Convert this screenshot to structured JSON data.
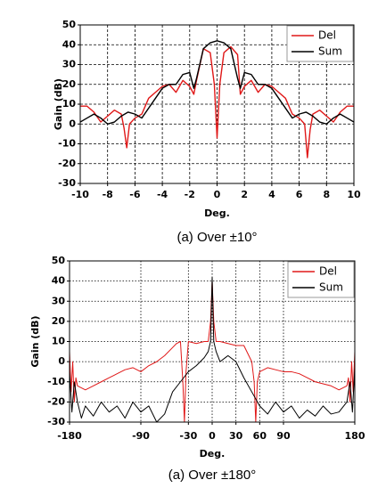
{
  "chart_data": [
    {
      "type": "line",
      "xlabel": "Deg.",
      "ylabel": "Gain (dB)",
      "caption": "(a) Over ±10°",
      "xlim": [
        -10,
        10
      ],
      "ylim": [
        -30,
        50
      ],
      "xticks": [
        -10,
        -8,
        -6,
        -4,
        -2,
        0,
        2,
        4,
        6,
        8,
        10
      ],
      "yticks": [
        -30,
        -20,
        -10,
        0,
        10,
        20,
        30,
        40,
        50
      ],
      "grid": true,
      "legend": "upper right",
      "series": [
        {
          "name": "Del",
          "color": "#e01818",
          "x": [
            -10,
            -9.5,
            -9,
            -8.5,
            -8,
            -7.5,
            -7,
            -6.8,
            -6.6,
            -6.4,
            -6,
            -5.5,
            -5,
            -4.5,
            -4,
            -3.5,
            -3,
            -2.5,
            -2,
            -1.7,
            -1.5,
            -1,
            -0.5,
            -0.2,
            0,
            0.2,
            0.5,
            1,
            1.5,
            1.7,
            2,
            2.5,
            3,
            3.5,
            4,
            4.5,
            5,
            5.5,
            6,
            6.4,
            6.6,
            6.8,
            7,
            7.5,
            8,
            8.5,
            9,
            9.5,
            10
          ],
          "values": [
            9,
            9,
            6,
            1,
            4,
            7,
            5,
            -2,
            -12,
            0,
            3,
            5,
            13,
            16,
            19,
            20,
            16,
            22,
            19,
            15,
            22,
            38,
            36,
            20,
            -7,
            20,
            36,
            39,
            35,
            15,
            19,
            22,
            16,
            20,
            19,
            16,
            13,
            5,
            3,
            0,
            -17,
            -3,
            5,
            7,
            4,
            1,
            6,
            9,
            9
          ]
        },
        {
          "name": "Sum",
          "color": "#000000",
          "x": [
            -10,
            -9.5,
            -9,
            -8.5,
            -8,
            -7.5,
            -7,
            -6.5,
            -6,
            -5.5,
            -5,
            -4.5,
            -4,
            -3.5,
            -3,
            -2.5,
            -2,
            -1.7,
            -1.5,
            -1,
            -0.5,
            0,
            0.5,
            1,
            1.5,
            1.7,
            2,
            2.5,
            3,
            3.5,
            4,
            4.5,
            5,
            5.5,
            6,
            6.5,
            7,
            7.5,
            8,
            8.5,
            9,
            9.5,
            10
          ],
          "values": [
            1,
            3,
            5,
            3,
            0,
            1,
            4,
            6,
            5,
            3,
            8,
            13,
            18,
            20,
            20,
            25,
            26,
            18,
            23,
            38,
            41,
            42,
            41,
            38,
            23,
            18,
            26,
            25,
            20,
            20,
            18,
            13,
            8,
            3,
            5,
            6,
            4,
            1,
            0,
            3,
            5,
            3,
            1
          ]
        }
      ]
    },
    {
      "type": "line",
      "xlabel": "Deg.",
      "ylabel": "Gain (dB)",
      "caption": "(a) Over ±180°",
      "xlim": [
        -180,
        180
      ],
      "ylim": [
        -30,
        50
      ],
      "xticks": [
        -180,
        -90,
        -30,
        0,
        30,
        60,
        90,
        180
      ],
      "yticks": [
        -30,
        -20,
        -10,
        0,
        10,
        20,
        30,
        40,
        50
      ],
      "grid": true,
      "legend": "upper right",
      "series": [
        {
          "name": "Del",
          "color": "#e01818",
          "x": [
            -180,
            -178,
            -176,
            -174,
            -172,
            -170,
            -160,
            -150,
            -140,
            -130,
            -120,
            -110,
            -100,
            -90,
            -80,
            -70,
            -60,
            -50,
            -45,
            -40,
            -37,
            -35,
            -33,
            -30,
            -20,
            -10,
            -5,
            -2,
            0,
            2,
            5,
            10,
            20,
            30,
            40,
            50,
            53,
            55,
            57,
            60,
            70,
            80,
            90,
            100,
            110,
            120,
            130,
            140,
            150,
            160,
            170,
            172,
            174,
            176,
            178,
            180
          ],
          "values": [
            5,
            -15,
            0,
            -20,
            -8,
            -12,
            -14,
            -12,
            -10,
            -8,
            -6,
            -4,
            -3,
            -5,
            -2,
            0,
            3,
            7,
            9,
            10,
            -10,
            -30,
            -5,
            10,
            9,
            10,
            10,
            20,
            40,
            20,
            10,
            10,
            9,
            8,
            8,
            0,
            -10,
            -30,
            -10,
            -5,
            -3,
            -4,
            -5,
            -5,
            -6,
            -8,
            -10,
            -11,
            -12,
            -14,
            -12,
            -8,
            -20,
            0,
            -15,
            5
          ]
        },
        {
          "name": "Sum",
          "color": "#000000",
          "x": [
            -180,
            -177,
            -174,
            -170,
            -165,
            -160,
            -150,
            -140,
            -130,
            -120,
            -110,
            -100,
            -90,
            -80,
            -70,
            -60,
            -50,
            -40,
            -30,
            -20,
            -10,
            -5,
            -2,
            0,
            2,
            5,
            10,
            20,
            30,
            40,
            50,
            60,
            70,
            80,
            90,
            100,
            110,
            120,
            130,
            140,
            150,
            160,
            170,
            174,
            177,
            180
          ],
          "values": [
            -5,
            -25,
            -10,
            -20,
            -28,
            -22,
            -27,
            -20,
            -25,
            -22,
            -28,
            -20,
            -25,
            -22,
            -30,
            -26,
            -15,
            -10,
            -5,
            -2,
            2,
            5,
            10,
            42,
            10,
            5,
            0,
            3,
            0,
            -8,
            -15,
            -22,
            -26,
            -20,
            -25,
            -22,
            -28,
            -24,
            -27,
            -22,
            -26,
            -25,
            -20,
            -10,
            -25,
            -3
          ]
        }
      ]
    }
  ]
}
